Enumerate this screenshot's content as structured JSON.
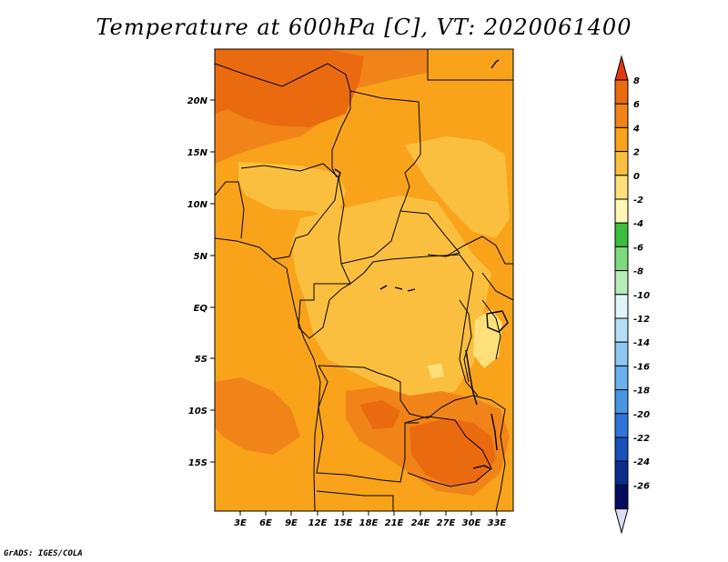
{
  "title": "Temperature at 600hPa [C], VT: 2020061400",
  "credit": "GrADS: IGES/COLA",
  "map": {
    "lat_ticks": [
      "20N",
      "15N",
      "10N",
      "5N",
      "EQ",
      "5S",
      "10S",
      "15S"
    ],
    "lon_ticks": [
      "3E",
      "6E",
      "9E",
      "12E",
      "15E",
      "18E",
      "21E",
      "24E",
      "27E",
      "30E",
      "33E"
    ],
    "field_colors": {
      "base": "#f8a31a",
      "warm": "#f08419",
      "hot": "#ea6a10",
      "mild": "#fbbf3f",
      "cool": "#fde07a"
    }
  },
  "colorbar": {
    "levels": [
      "8",
      "6",
      "4",
      "2",
      "0",
      "-2",
      "-4",
      "-6",
      "-8",
      "-10",
      "-12",
      "-14",
      "-16",
      "-18",
      "-20",
      "-22",
      "-24",
      "-26"
    ],
    "colors": [
      "#e23a10",
      "#ea6a10",
      "#f08419",
      "#f8a31a",
      "#fbbf3f",
      "#fde07a",
      "#fef7b6",
      "#3cbf3c",
      "#7fd97f",
      "#b8ecb8",
      "#e0f4f8",
      "#b4dff4",
      "#8ec8f0",
      "#6ab0ec",
      "#4a94e4",
      "#2f74d8",
      "#1a50bc",
      "#0a2c8c",
      "#050e5e",
      "#dcdcf4"
    ]
  }
}
